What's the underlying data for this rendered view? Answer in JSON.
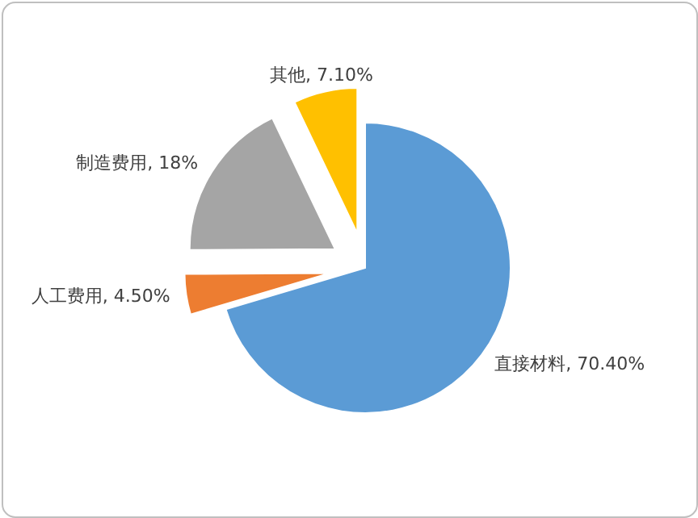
{
  "chart_data": {
    "type": "pie",
    "categories": [
      "直接材料",
      "人工费用",
      "制造费用",
      "其他"
    ],
    "values": [
      70.4,
      4.5,
      18,
      7.1
    ],
    "colors": [
      "#5b9bd5",
      "#ed7d31",
      "#a5a5a5",
      "#ffc000"
    ],
    "value_labels": [
      "70.40%",
      "4.50%",
      "18%",
      "7.10%"
    ],
    "legend": false
  }
}
